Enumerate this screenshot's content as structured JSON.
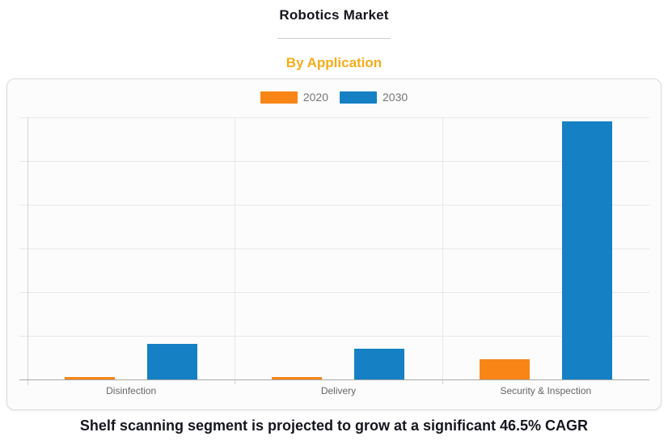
{
  "page": {
    "title": "Robotics Market",
    "subtitle": "By Application",
    "caption": "Shelf scanning segment is projected to grow at a significant 46.5% CAGR"
  },
  "colors": {
    "series_2020": "#f98517",
    "series_2030": "#1580c4",
    "subtitle_text": "#f7ac1b",
    "title_text": "#15161e",
    "legend_text": "#757575",
    "axis_label_text": "#666666",
    "gridline": "#e8e8e8",
    "axis_line": "#a8a8a8",
    "card_border": "#dbdbdb",
    "card_background": "#fcfcfc"
  },
  "legend": {
    "items": [
      {
        "label": "2020",
        "color": "#f98517"
      },
      {
        "label": "2030",
        "color": "#1580c4"
      }
    ]
  },
  "chart_data": {
    "type": "bar",
    "title": "Robotics Market",
    "subtitle": "By Application",
    "categories": [
      "Disinfection",
      "Delivery",
      "Security & Inspection"
    ],
    "series": [
      {
        "name": "2020",
        "color": "#f98517",
        "values": [
          0.06,
          0.06,
          0.47
        ]
      },
      {
        "name": "2030",
        "color": "#1580c4",
        "values": [
          0.81,
          0.71,
          5.91
        ]
      }
    ],
    "xlabel": "",
    "ylabel": "",
    "ylim": [
      0,
      6
    ],
    "y_tick_labels_visible": false,
    "gridlines": "horizontal (7 lines, 6 intervals) plus vertical category dividers",
    "legend_position": "top-center",
    "value_units": "gridline intervals (y-axis is unlabeled; values estimated from gridlines)"
  }
}
